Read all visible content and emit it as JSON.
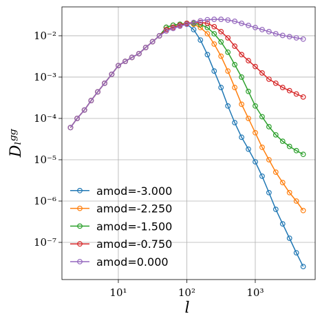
{
  "chart_data": {
    "type": "line",
    "xlabel": "l",
    "ylabel": "Dₗᵍᵍ",
    "x": [
      2,
      2.5,
      3.2,
      4,
      5,
      6.3,
      8,
      10,
      12.6,
      15.8,
      20,
      25.1,
      31.6,
      39.8,
      50.1,
      63.1,
      79.4,
      100,
      126,
      158,
      200,
      251,
      316,
      398,
      501,
      631,
      794,
      1000,
      1259,
      1585,
      1995,
      2512,
      3162,
      3981,
      5012
    ],
    "series": [
      {
        "name": "amod=-3.000",
        "color": "#1f77b4",
        "values": [
          6e-05,
          0.0001,
          0.00016,
          0.00027,
          0.00044,
          0.00071,
          0.00117,
          0.0019,
          0.0024,
          0.003,
          0.0037,
          0.0052,
          0.0072,
          0.01,
          0.016,
          0.018,
          0.019,
          0.019,
          0.0141,
          0.0079,
          0.0035,
          0.0014,
          0.00056,
          0.0002,
          7.9e-05,
          3.5e-05,
          1.8e-05,
          8.9e-06,
          4e-06,
          1.6e-06,
          6.3e-07,
          2.8e-07,
          1.26e-07,
          5.6e-08,
          2.6e-08
        ]
      },
      {
        "name": "amod=-2.250",
        "color": "#ff7f0e",
        "values": [
          6e-05,
          0.0001,
          0.00016,
          0.00027,
          0.00044,
          0.00071,
          0.00117,
          0.0019,
          0.0024,
          0.003,
          0.0037,
          0.0052,
          0.0072,
          0.01,
          0.016,
          0.018,
          0.019,
          0.02,
          0.019,
          0.0158,
          0.0112,
          0.0063,
          0.0032,
          0.0014,
          0.00056,
          0.00022,
          0.0001,
          4.5e-05,
          2e-05,
          1e-05,
          5e-06,
          2.8e-06,
          1.6e-06,
          1e-06,
          5.9e-07
        ]
      },
      {
        "name": "amod=-1.500",
        "color": "#2ca02c",
        "values": [
          6e-05,
          0.0001,
          0.00016,
          0.00027,
          0.00044,
          0.00071,
          0.00117,
          0.0019,
          0.0024,
          0.003,
          0.0037,
          0.0052,
          0.0072,
          0.01,
          0.016,
          0.018,
          0.019,
          0.02,
          0.02,
          0.0186,
          0.0158,
          0.0112,
          0.0071,
          0.004,
          0.002,
          0.001,
          0.00045,
          0.0002,
          0.00011,
          6.3e-05,
          4e-05,
          2.8e-05,
          2.1e-05,
          1.66e-05,
          1.35e-05
        ]
      },
      {
        "name": "amod=-0.750",
        "color": "#d62728",
        "values": [
          6e-05,
          0.0001,
          0.00016,
          0.00027,
          0.00044,
          0.00071,
          0.00117,
          0.0019,
          0.0024,
          0.003,
          0.0037,
          0.0052,
          0.0072,
          0.01,
          0.014,
          0.016,
          0.018,
          0.02,
          0.021,
          0.021,
          0.02,
          0.0166,
          0.0126,
          0.0089,
          0.0056,
          0.0035,
          0.0025,
          0.0018,
          0.00126,
          0.00089,
          0.00071,
          0.00056,
          0.00047,
          0.00039,
          0.00033
        ]
      },
      {
        "name": "amod=0.000",
        "color": "#9467bd",
        "values": [
          6e-05,
          0.0001,
          0.00016,
          0.00027,
          0.00044,
          0.00071,
          0.00117,
          0.0019,
          0.0024,
          0.003,
          0.0037,
          0.0052,
          0.0072,
          0.01,
          0.013,
          0.015,
          0.017,
          0.019,
          0.021,
          0.023,
          0.0245,
          0.025,
          0.025,
          0.024,
          0.0224,
          0.02,
          0.0178,
          0.0158,
          0.0141,
          0.0126,
          0.0112,
          0.0102,
          0.0095,
          0.0089,
          0.0083
        ]
      }
    ],
    "xlim": [
      1.5,
      7500
    ],
    "ylim": [
      1.26e-08,
      0.05
    ],
    "xticks": [
      {
        "value": 10,
        "label": "10¹"
      },
      {
        "value": 100,
        "label": "10²"
      },
      {
        "value": 1000,
        "label": "10³"
      }
    ],
    "yticks": [
      {
        "value": 1e-07,
        "label": "10⁻⁷"
      },
      {
        "value": 1e-06,
        "label": "10⁻⁶"
      },
      {
        "value": 1e-05,
        "label": "10⁻⁵"
      },
      {
        "value": 0.0001,
        "label": "10⁻⁴"
      },
      {
        "value": 0.001,
        "label": "10⁻³"
      },
      {
        "value": 0.01,
        "label": "10⁻²"
      }
    ],
    "xscale": "log",
    "yscale": "log",
    "grid": true,
    "legend": "lower left",
    "marker": "open-circle"
  }
}
